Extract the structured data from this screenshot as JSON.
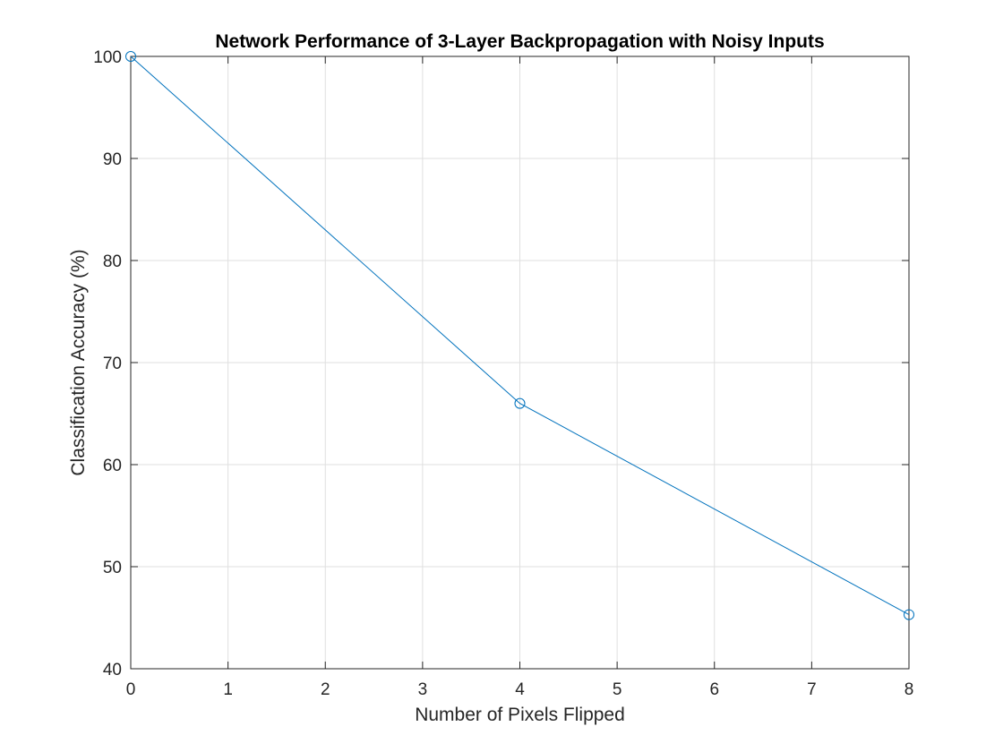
{
  "chart_data": {
    "type": "line",
    "title": "Network Performance of 3-Layer Backpropagation with Noisy Inputs",
    "xlabel": "Number of Pixels Flipped",
    "ylabel": "Classification Accuracy (%)",
    "xlim": [
      0,
      8
    ],
    "ylim": [
      40,
      100
    ],
    "x_ticks": [
      "0",
      "1",
      "2",
      "3",
      "4",
      "5",
      "6",
      "7",
      "8"
    ],
    "y_ticks": [
      "40",
      "50",
      "60",
      "70",
      "80",
      "90",
      "100"
    ],
    "grid": true,
    "legend": "none",
    "marker": "circle",
    "series": [
      {
        "color": "#0072bd",
        "x": [
          0,
          4,
          8
        ],
        "y": [
          100,
          66,
          45.3
        ]
      }
    ]
  }
}
